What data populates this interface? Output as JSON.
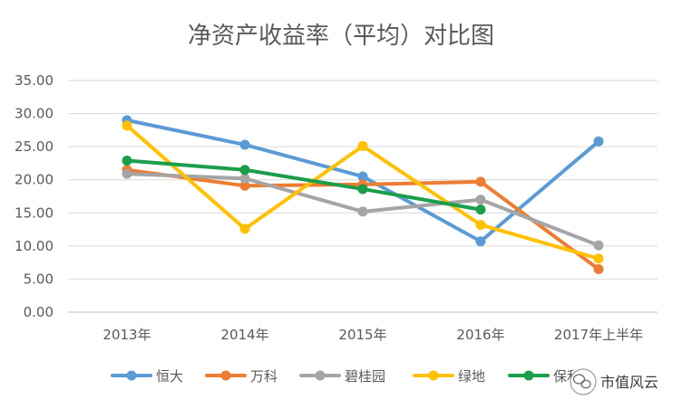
{
  "chart_data": {
    "type": "line",
    "title": "净资产收益率（平均）对比图",
    "xlabel": "",
    "ylabel": "",
    "categories": [
      "2013年",
      "2014年",
      "2015年",
      "2016年",
      "2017年上半年"
    ],
    "ylim": [
      0,
      35
    ],
    "yticks": [
      "0.00",
      "5.00",
      "10.00",
      "15.00",
      "20.00",
      "25.00",
      "30.00",
      "35.00"
    ],
    "grid": true,
    "legend_position": "bottom",
    "series": [
      {
        "name": "恒大",
        "color": "#5B9BD5",
        "values": [
          29.0,
          25.3,
          20.5,
          10.7,
          25.8
        ]
      },
      {
        "name": "万科",
        "color": "#ED7D31",
        "values": [
          21.5,
          19.1,
          19.3,
          19.7,
          6.5
        ]
      },
      {
        "name": "碧桂园",
        "color": "#A5A5A5",
        "values": [
          20.9,
          20.2,
          15.2,
          17.0,
          10.1
        ]
      },
      {
        "name": "绿地",
        "color": "#FFC000",
        "values": [
          28.2,
          12.6,
          25.1,
          13.2,
          8.1
        ]
      },
      {
        "name": "保利",
        "color": "#1B9E4B",
        "values": [
          22.9,
          21.5,
          18.6,
          15.5,
          null
        ]
      }
    ]
  },
  "watermark": {
    "text": "市值风云",
    "icon": "wechat-icon"
  }
}
